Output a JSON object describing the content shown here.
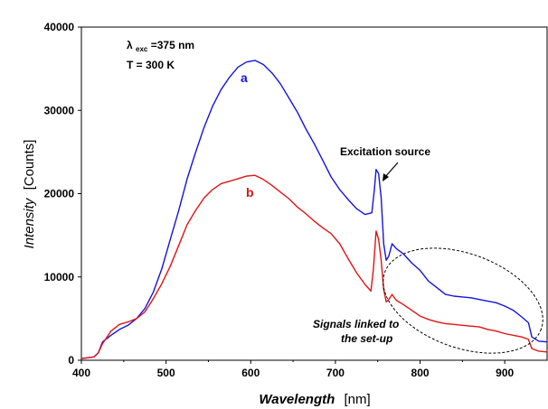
{
  "chart_data": {
    "type": "line",
    "xlabel": "Wavelength",
    "xlabel_unit": "[nm]",
    "ylabel": "Intensity",
    "ylabel_unit": "[Counts]",
    "xlim": [
      400,
      950
    ],
    "ylim": [
      0,
      40000
    ],
    "x_ticks": [
      400,
      500,
      600,
      700,
      800,
      900
    ],
    "y_ticks": [
      0,
      10000,
      20000,
      30000,
      40000
    ],
    "grid": false,
    "annotations": {
      "lambda_symbol": "λ",
      "lambda_sub": "exc",
      "lambda_value": "=375 nm",
      "temperature": "T = 300 K",
      "excitation": "Excitation source",
      "signals_line1": "Signals linked to",
      "signals_line2": "the set-up"
    },
    "series": [
      {
        "name": "a",
        "color": "#1414e0",
        "points": [
          [
            400,
            200
          ],
          [
            415,
            400
          ],
          [
            420,
            900
          ],
          [
            425,
            2200
          ],
          [
            435,
            3000
          ],
          [
            445,
            3700
          ],
          [
            455,
            4200
          ],
          [
            465,
            5000
          ],
          [
            475,
            6200
          ],
          [
            485,
            8200
          ],
          [
            495,
            11000
          ],
          [
            505,
            14500
          ],
          [
            515,
            18000
          ],
          [
            525,
            21800
          ],
          [
            535,
            25000
          ],
          [
            545,
            28000
          ],
          [
            555,
            30500
          ],
          [
            565,
            32500
          ],
          [
            575,
            34000
          ],
          [
            585,
            35200
          ],
          [
            595,
            35800
          ],
          [
            605,
            36000
          ],
          [
            615,
            35500
          ],
          [
            625,
            34500
          ],
          [
            635,
            33200
          ],
          [
            645,
            31500
          ],
          [
            655,
            29800
          ],
          [
            665,
            27800
          ],
          [
            675,
            26000
          ],
          [
            685,
            24000
          ],
          [
            695,
            22000
          ],
          [
            705,
            20500
          ],
          [
            715,
            19300
          ],
          [
            725,
            18200
          ],
          [
            735,
            17500
          ],
          [
            743,
            17700
          ],
          [
            746,
            20500
          ],
          [
            748,
            22900
          ],
          [
            751,
            22400
          ],
          [
            754,
            19500
          ],
          [
            757,
            14000
          ],
          [
            760,
            12000
          ],
          [
            763,
            12500
          ],
          [
            767,
            14000
          ],
          [
            772,
            13400
          ],
          [
            780,
            12800
          ],
          [
            790,
            11700
          ],
          [
            800,
            10800
          ],
          [
            810,
            9500
          ],
          [
            820,
            8700
          ],
          [
            830,
            7900
          ],
          [
            840,
            7700
          ],
          [
            850,
            7600
          ],
          [
            860,
            7500
          ],
          [
            870,
            7300
          ],
          [
            880,
            7100
          ],
          [
            890,
            6900
          ],
          [
            900,
            6500
          ],
          [
            910,
            6000
          ],
          [
            920,
            5200
          ],
          [
            928,
            4500
          ],
          [
            932,
            2800
          ],
          [
            940,
            2300
          ],
          [
            950,
            2200
          ]
        ]
      },
      {
        "name": "b",
        "color": "#e01414",
        "points": [
          [
            400,
            200
          ],
          [
            415,
            400
          ],
          [
            420,
            900
          ],
          [
            425,
            2000
          ],
          [
            435,
            3500
          ],
          [
            445,
            4300
          ],
          [
            455,
            4600
          ],
          [
            465,
            5000
          ],
          [
            475,
            5800
          ],
          [
            485,
            7400
          ],
          [
            495,
            9200
          ],
          [
            505,
            11300
          ],
          [
            515,
            13800
          ],
          [
            525,
            16300
          ],
          [
            535,
            18000
          ],
          [
            545,
            19500
          ],
          [
            555,
            20500
          ],
          [
            565,
            21200
          ],
          [
            575,
            21500
          ],
          [
            585,
            21800
          ],
          [
            595,
            22100
          ],
          [
            605,
            22200
          ],
          [
            615,
            21700
          ],
          [
            625,
            21000
          ],
          [
            635,
            20200
          ],
          [
            645,
            19400
          ],
          [
            655,
            18400
          ],
          [
            665,
            17600
          ],
          [
            675,
            16700
          ],
          [
            685,
            15900
          ],
          [
            695,
            15200
          ],
          [
            705,
            14000
          ],
          [
            715,
            12200
          ],
          [
            725,
            10500
          ],
          [
            735,
            9100
          ],
          [
            742,
            8300
          ],
          [
            745,
            11000
          ],
          [
            748,
            15500
          ],
          [
            751,
            14500
          ],
          [
            754,
            12000
          ],
          [
            757,
            8500
          ],
          [
            760,
            7000
          ],
          [
            763,
            7300
          ],
          [
            767,
            7900
          ],
          [
            772,
            7200
          ],
          [
            780,
            6700
          ],
          [
            790,
            6000
          ],
          [
            800,
            5300
          ],
          [
            810,
            4900
          ],
          [
            820,
            4600
          ],
          [
            830,
            4400
          ],
          [
            840,
            4300
          ],
          [
            850,
            4200
          ],
          [
            860,
            4100
          ],
          [
            870,
            4000
          ],
          [
            880,
            3700
          ],
          [
            890,
            3500
          ],
          [
            900,
            3200
          ],
          [
            910,
            3000
          ],
          [
            920,
            2800
          ],
          [
            928,
            2500
          ],
          [
            932,
            1400
          ],
          [
            940,
            1100
          ],
          [
            950,
            1000
          ]
        ]
      }
    ]
  }
}
